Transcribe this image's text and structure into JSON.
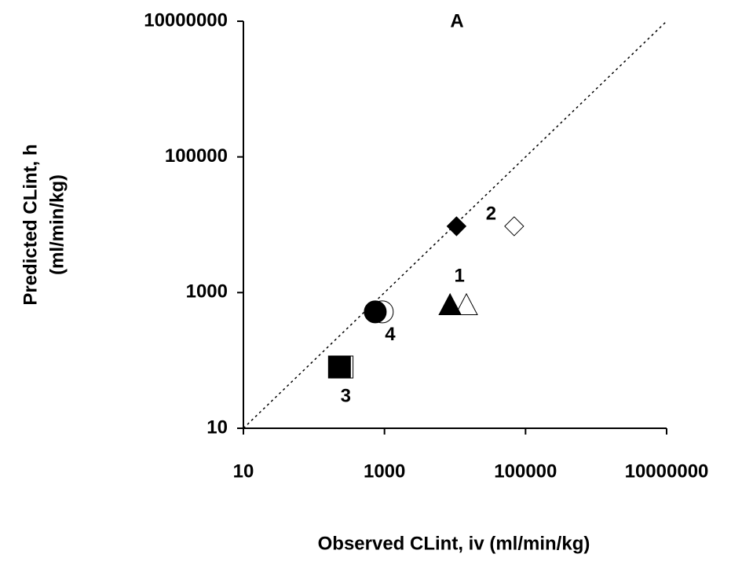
{
  "chart_data": {
    "type": "scatter",
    "title": "A",
    "xlabel": "Observed CLint, iv (ml/min/kg)",
    "ylabel": [
      "Predicted CLint, h",
      "(ml/min/kg)"
    ],
    "log_x": true,
    "log_y": true,
    "identity_line": true,
    "xlim": [
      10,
      10000000
    ],
    "ylim": [
      10,
      10000000
    ],
    "xticks": [
      10,
      1000,
      100000,
      10000000
    ],
    "yticks": [
      10,
      1000,
      100000,
      10000000
    ],
    "series": [
      {
        "name": "1",
        "marker": "triangle",
        "fills": [
          "#000000",
          "#ffffff"
        ],
        "x": [
          8500,
          14500
        ],
        "y": [
          660,
          660
        ]
      },
      {
        "name": "2",
        "marker": "diamond",
        "fills": [
          "#000000",
          "#ffffff"
        ],
        "x": [
          10500,
          69000
        ],
        "y": [
          9500,
          9500
        ]
      },
      {
        "name": "3",
        "marker": "square",
        "fills": [
          "#000000",
          "#ffffff"
        ],
        "x": [
          230,
          250
        ],
        "y": [
          80,
          80
        ]
      },
      {
        "name": "4",
        "marker": "circle",
        "fills": [
          "#000000",
          "#ffffff"
        ],
        "x": [
          740,
          930
        ],
        "y": [
          520,
          520
        ]
      }
    ]
  }
}
